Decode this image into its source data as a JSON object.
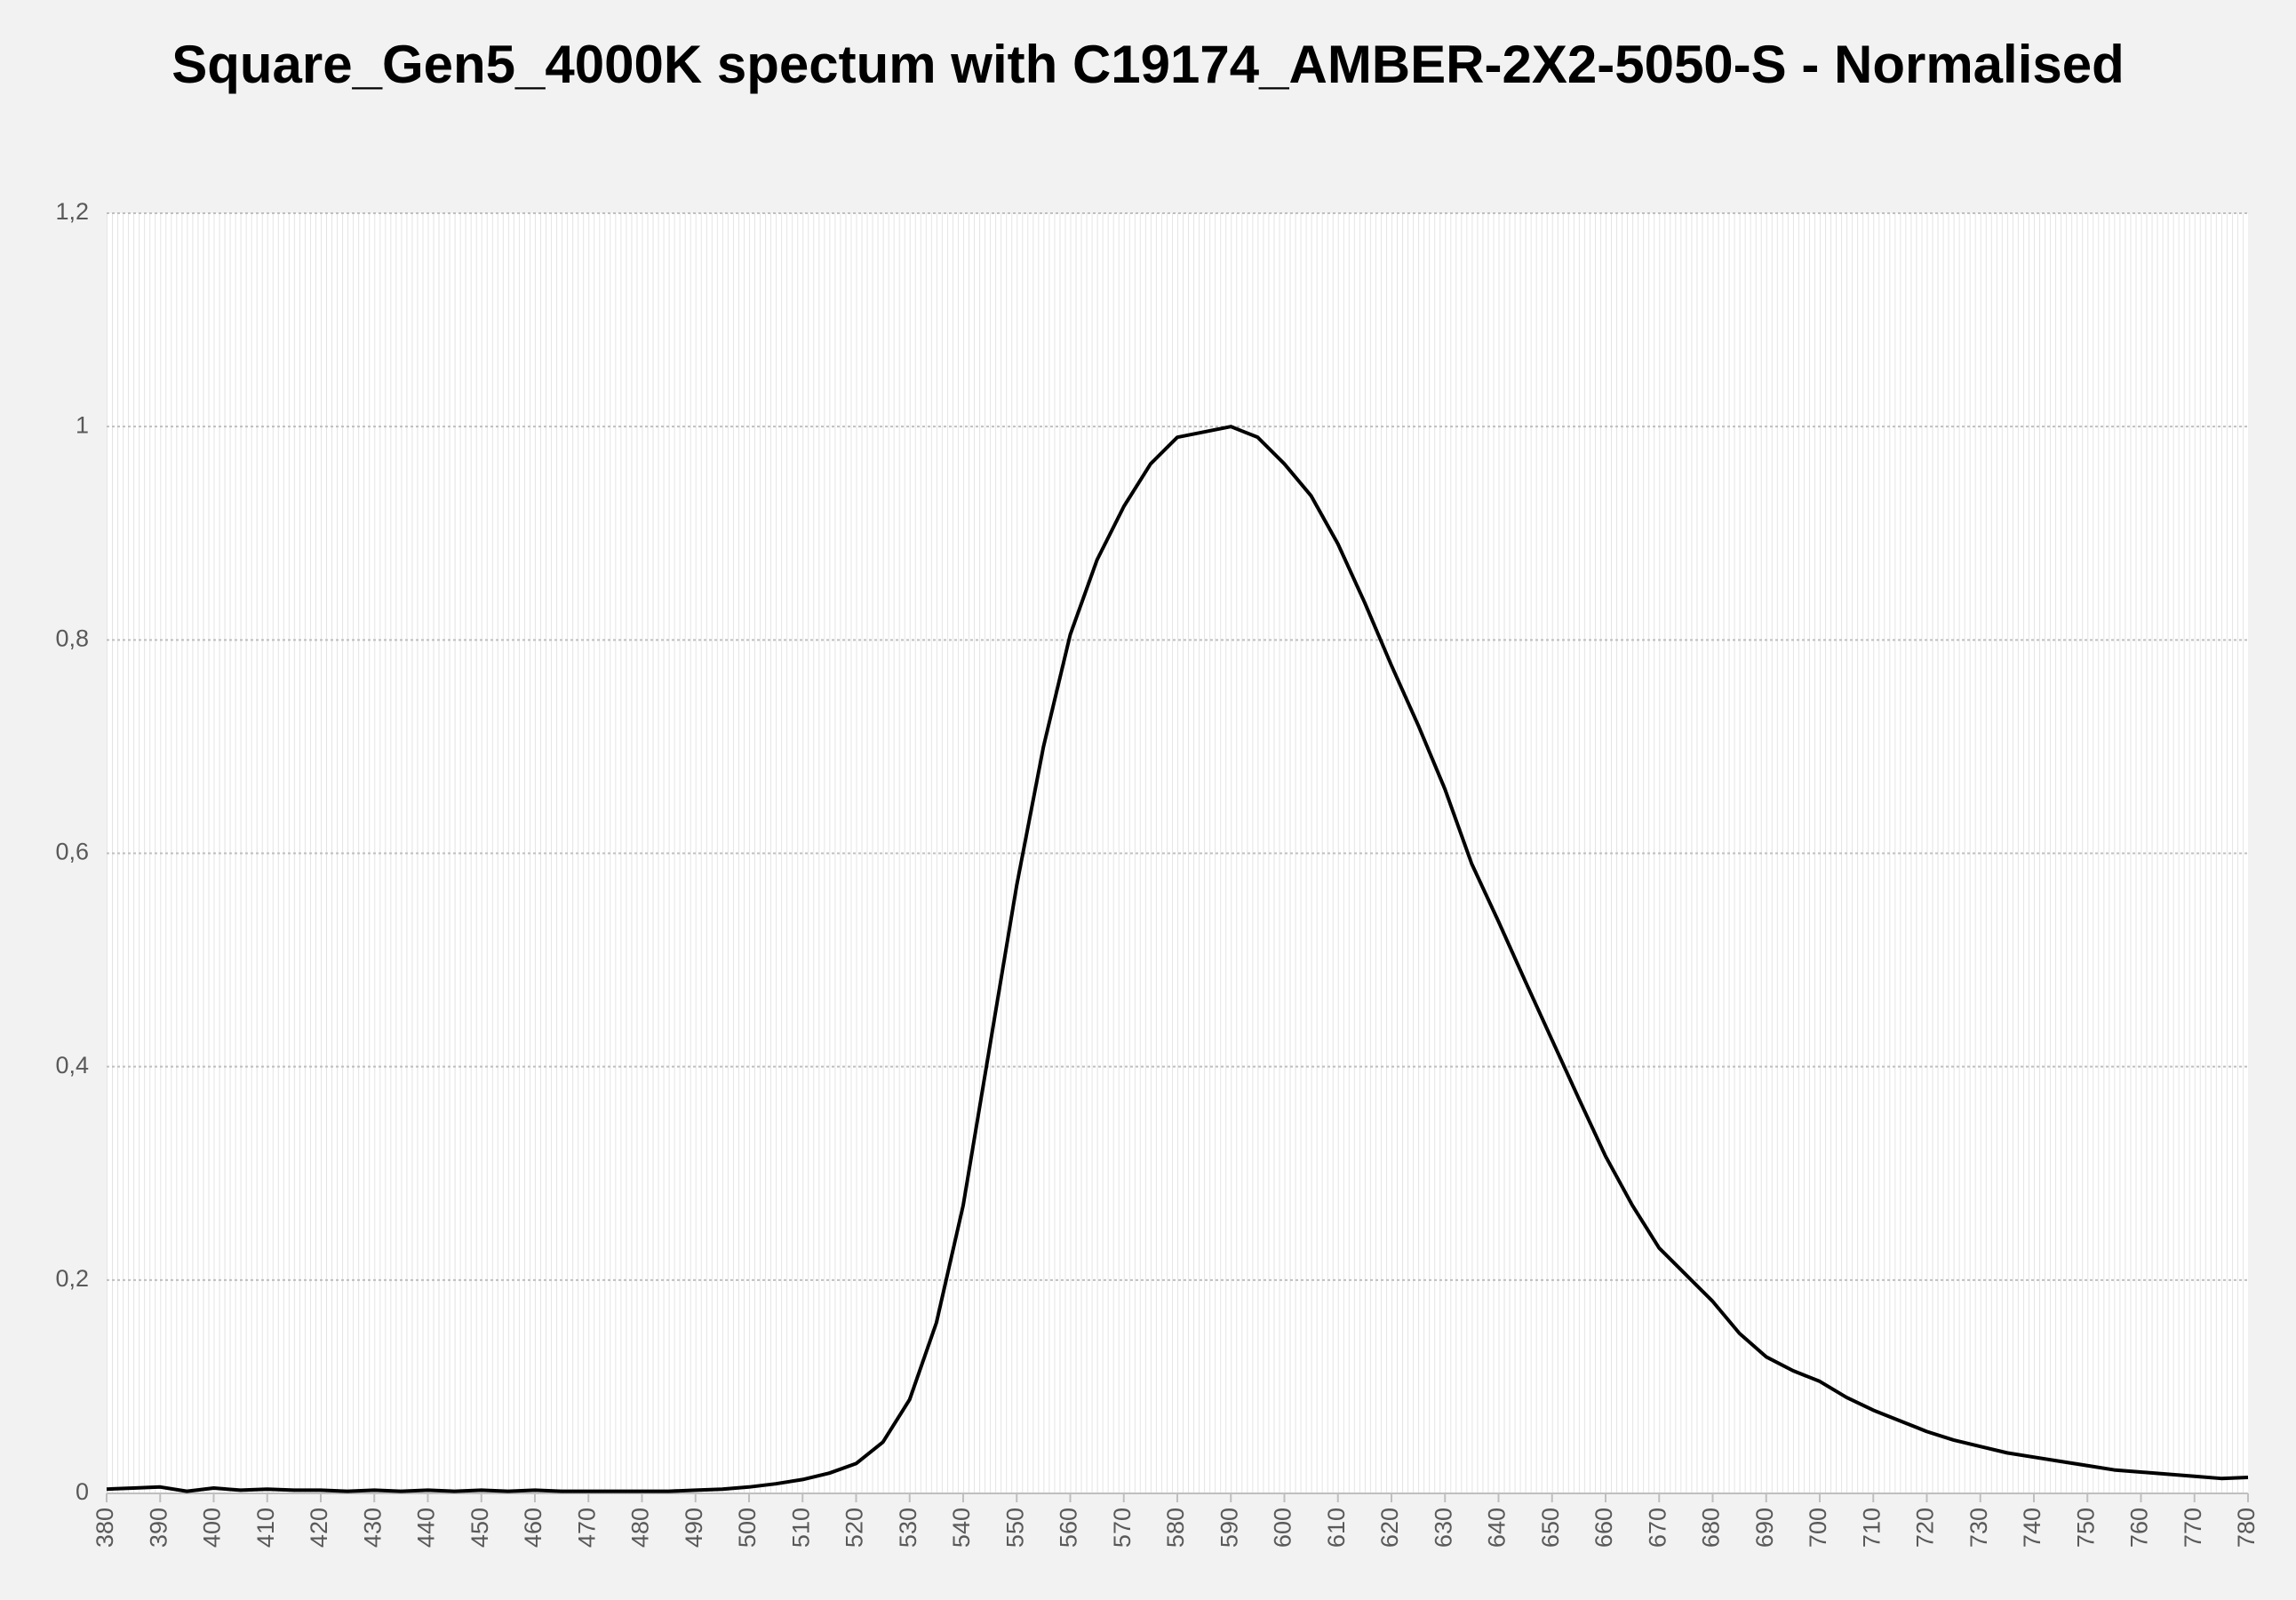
{
  "chart_data": {
    "type": "line",
    "title": "Square_Gen5_4000K  spectum with C19174_AMBER-2X2-5050-S - Normalised",
    "x": [
      380,
      385,
      390,
      395,
      400,
      405,
      410,
      415,
      420,
      425,
      430,
      435,
      440,
      445,
      450,
      455,
      460,
      465,
      470,
      475,
      480,
      485,
      490,
      495,
      500,
      505,
      510,
      515,
      520,
      525,
      530,
      535,
      540,
      545,
      550,
      555,
      560,
      565,
      570,
      575,
      580,
      585,
      590,
      595,
      600,
      605,
      610,
      615,
      620,
      625,
      630,
      635,
      640,
      645,
      650,
      655,
      660,
      665,
      670,
      675,
      680,
      685,
      690,
      695,
      700,
      705,
      710,
      715,
      720,
      725,
      730,
      735,
      740,
      745,
      750,
      755,
      760,
      765,
      770,
      775,
      780
    ],
    "series": [
      {
        "name": "Normalised",
        "color": "#000000",
        "values": [
          0.004,
          0.005,
          0.006,
          0.002,
          0.005,
          0.003,
          0.004,
          0.003,
          0.003,
          0.002,
          0.003,
          0.002,
          0.003,
          0.002,
          0.003,
          0.002,
          0.003,
          0.002,
          0.002,
          0.002,
          0.002,
          0.002,
          0.003,
          0.004,
          0.006,
          0.009,
          0.013,
          0.019,
          0.028,
          0.048,
          0.088,
          0.16,
          0.27,
          0.42,
          0.57,
          0.7,
          0.805,
          0.875,
          0.925,
          0.965,
          0.99,
          0.995,
          1.0,
          0.99,
          0.965,
          0.935,
          0.89,
          0.835,
          0.776,
          0.72,
          0.66,
          0.59,
          0.536,
          0.48,
          0.425,
          0.37,
          0.316,
          0.27,
          0.23,
          0.205,
          0.18,
          0.15,
          0.128,
          0.115,
          0.105,
          0.09,
          0.078,
          0.068,
          0.058,
          0.05,
          0.044,
          0.038,
          0.034,
          0.03,
          0.026,
          0.022,
          0.02,
          0.018,
          0.016,
          0.014,
          0.015
        ]
      }
    ],
    "xlim": [
      380,
      780
    ],
    "xticks": [
      380,
      390,
      400,
      410,
      420,
      430,
      440,
      450,
      460,
      470,
      480,
      490,
      500,
      510,
      520,
      530,
      540,
      550,
      560,
      570,
      580,
      590,
      600,
      610,
      620,
      630,
      640,
      650,
      660,
      670,
      680,
      690,
      700,
      710,
      720,
      730,
      740,
      750,
      760,
      770,
      780
    ],
    "ylim": [
      0,
      1.2
    ],
    "yticks": [
      0,
      {
        "value": 0.2,
        "label": "0,2"
      },
      {
        "value": 0.4,
        "label": "0,4"
      },
      {
        "value": 0.6,
        "label": "0,6"
      },
      {
        "value": 0.8,
        "label": "0,8"
      },
      1,
      {
        "value": 1.2,
        "label": "1,2"
      }
    ],
    "grid": true
  }
}
